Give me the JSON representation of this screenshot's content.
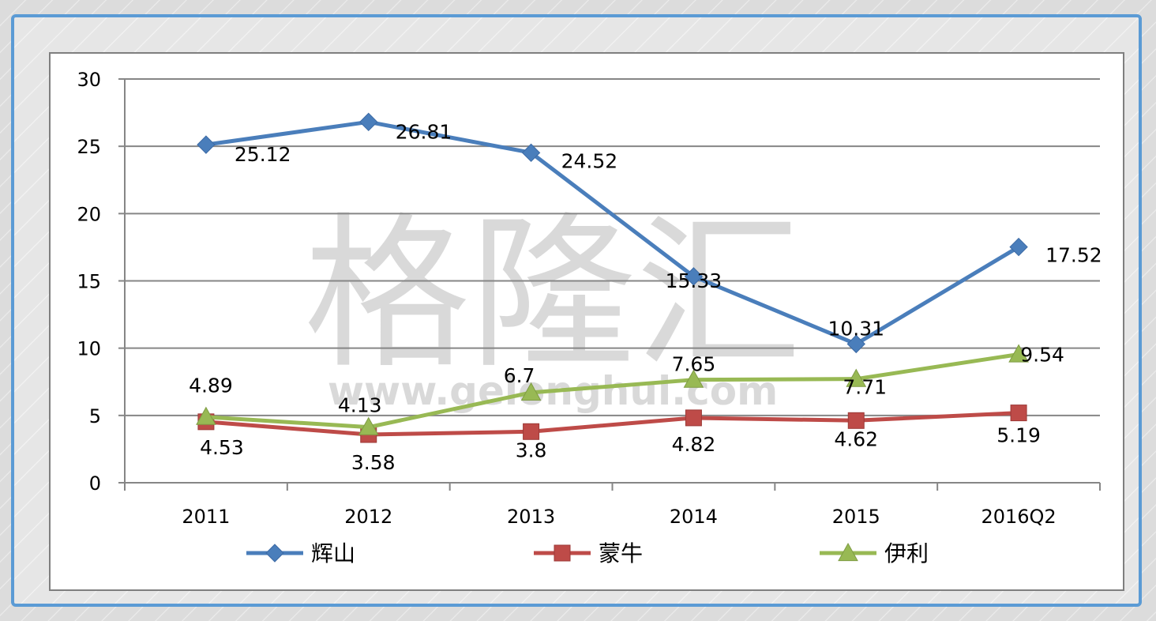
{
  "chart_data": {
    "type": "line",
    "categories": [
      "2011",
      "2012",
      "2013",
      "2014",
      "2015",
      "2016Q2"
    ],
    "series": [
      {
        "name": "辉山",
        "values": [
          25.12,
          26.81,
          24.52,
          15.33,
          10.31,
          17.52
        ],
        "color": "#4a7ebb",
        "marker": "diamond"
      },
      {
        "name": "蒙牛",
        "values": [
          4.53,
          3.58,
          3.8,
          4.82,
          4.62,
          5.19
        ],
        "color": "#be4b48",
        "marker": "square"
      },
      {
        "name": "伊利",
        "values": [
          4.89,
          4.13,
          6.7,
          7.65,
          7.71,
          9.54
        ],
        "color": "#98b954",
        "marker": "triangle"
      }
    ],
    "ylim": [
      0,
      30
    ],
    "yticks": [
      0,
      5,
      10,
      15,
      20,
      25,
      30
    ],
    "grid": true,
    "legend_position": "bottom",
    "title": "",
    "xlabel": "",
    "ylabel": ""
  },
  "watermark": {
    "main": "格隆汇",
    "url": "www.gelonghui.com"
  }
}
